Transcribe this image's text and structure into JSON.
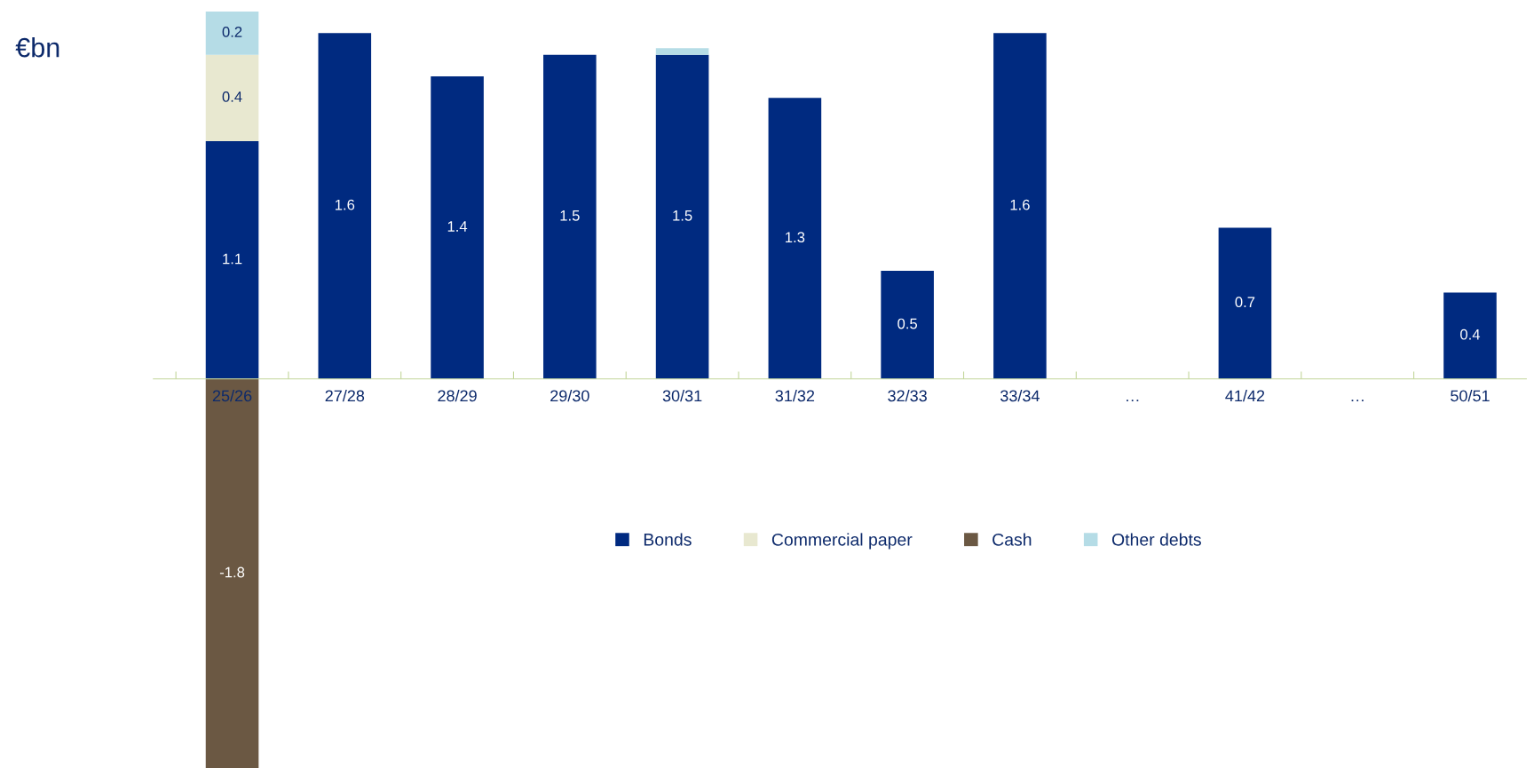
{
  "chart_data": {
    "type": "bar",
    "stacked": true,
    "ylabel": "€bn",
    "categories": [
      "25/26",
      "27/28",
      "28/29",
      "29/30",
      "30/31",
      "31/32",
      "32/33",
      "33/34",
      "…",
      "41/42",
      "…",
      "50/51"
    ],
    "series": [
      {
        "name": "Bonds",
        "color": "#002a80",
        "values": [
          1.1,
          1.6,
          1.4,
          1.5,
          1.5,
          1.3,
          0.5,
          1.6,
          null,
          0.7,
          null,
          0.4
        ],
        "value_labels": [
          "1.1",
          "1.6",
          "1.4",
          "1.5",
          "1.5",
          "1.3",
          "0.5",
          "1.6",
          null,
          "0.7",
          null,
          "0.4"
        ]
      },
      {
        "name": "Commercial paper",
        "color": "#e8e8d0",
        "values": [
          0.4,
          null,
          null,
          null,
          null,
          null,
          null,
          null,
          null,
          null,
          null,
          null
        ],
        "value_labels": [
          "0.4",
          null,
          null,
          null,
          null,
          null,
          null,
          null,
          null,
          null,
          null,
          null
        ]
      },
      {
        "name": "Cash",
        "color": "#6b5843",
        "values": [
          -1.8,
          null,
          null,
          null,
          null,
          null,
          null,
          null,
          null,
          null,
          null,
          null
        ],
        "value_labels": [
          "-1.8",
          null,
          null,
          null,
          null,
          null,
          null,
          null,
          null,
          null,
          null,
          null
        ]
      },
      {
        "name": "Other debts",
        "color": "#b5dce6",
        "values": [
          0.2,
          null,
          null,
          null,
          0.03,
          null,
          null,
          null,
          null,
          null,
          null,
          null
        ],
        "value_labels": [
          "0.2",
          null,
          null,
          null,
          null,
          null,
          null,
          null,
          null,
          null,
          null,
          null
        ]
      }
    ],
    "ylim": [
      -1.8,
      1.7
    ],
    "legend": "bottom",
    "grid": false
  }
}
